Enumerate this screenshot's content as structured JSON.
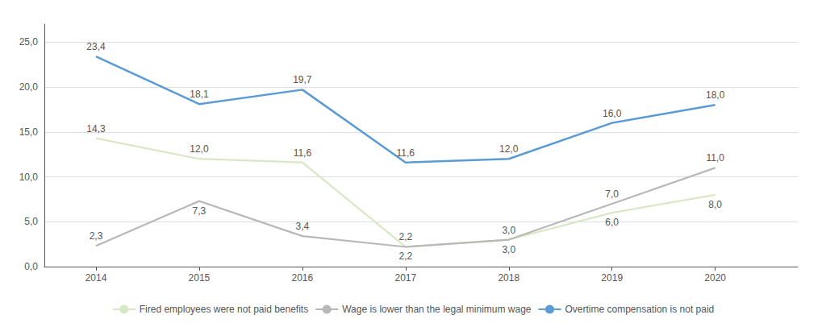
{
  "chart_data": {
    "type": "line",
    "x": [
      2014,
      2015,
      2016,
      2017,
      2018,
      2019,
      2020
    ],
    "series": [
      {
        "name": "Fired employees were not paid benefits",
        "color": "#d9e8c4",
        "values": [
          14.3,
          12.0,
          11.6,
          2.2,
          3.0,
          6.0,
          8.0
        ],
        "value_labels": [
          "14,3",
          "12,0",
          "11,6",
          "2,2",
          "3,0",
          "6,0",
          "8,0"
        ]
      },
      {
        "name": "Wage is lower than the legal minimum wage",
        "color": "#b8b8b8",
        "values": [
          2.3,
          7.3,
          3.4,
          2.2,
          3.0,
          7.0,
          11.0
        ],
        "value_labels": [
          "2,3",
          "7,3",
          "3,4",
          "2,2",
          "3,0",
          "7,0",
          "11,0"
        ]
      },
      {
        "name": "Overtime compensation is not paid",
        "color": "#5b9bd5",
        "values": [
          23.4,
          18.1,
          19.7,
          11.6,
          12.0,
          16.0,
          18.0
        ],
        "value_labels": [
          "23,4",
          "18,1",
          "19,7",
          "11,6",
          "12,0",
          "16,0",
          "18,0"
        ]
      }
    ],
    "xlim": [
      2013.5,
      2020.8
    ],
    "xticks": [
      2014,
      2015,
      2016,
      2017,
      2018,
      2019,
      2020
    ],
    "ylim": [
      0,
      27
    ],
    "yticks": [
      {
        "value": 0.0,
        "label": "0,0"
      },
      {
        "value": 5.0,
        "label": "5,0"
      },
      {
        "value": 10.0,
        "label": "10,0"
      },
      {
        "value": 15.0,
        "label": "15,0"
      },
      {
        "value": 20.0,
        "label": "20,0"
      },
      {
        "value": 25.0,
        "label": "25,0"
      }
    ],
    "grid": true,
    "legend": "bottom",
    "data_labels": true
  }
}
